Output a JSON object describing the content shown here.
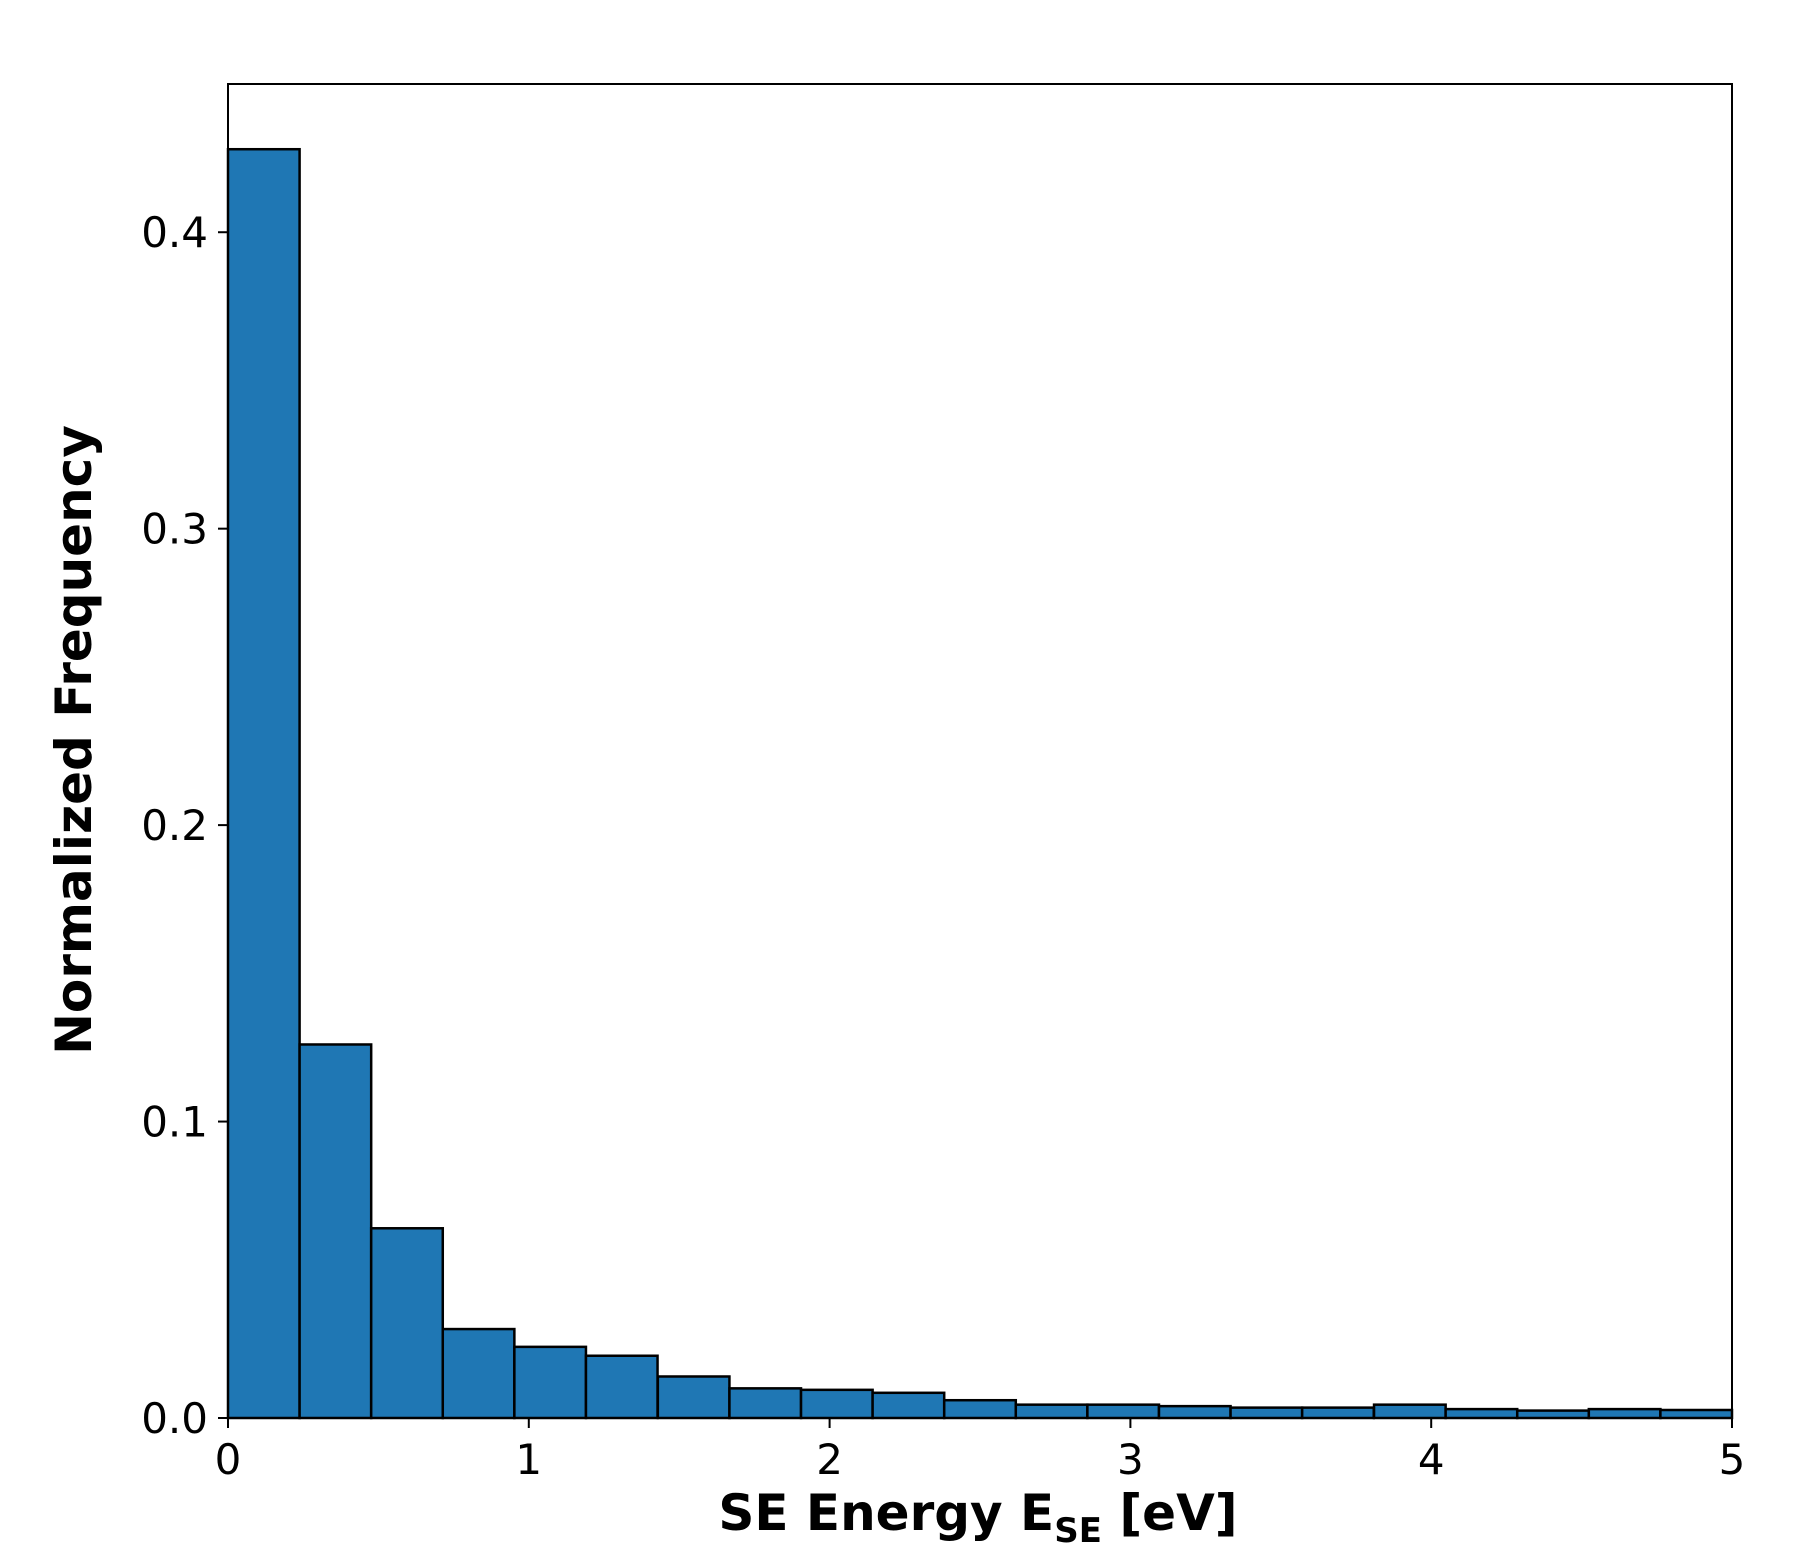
{
  "chart_data": {
    "type": "bar",
    "subtype": "histogram",
    "title": "",
    "xlabel": {
      "main": "SE Energy E",
      "subscript": "SE",
      "suffix": " [eV]"
    },
    "ylabel": "Normalized Frequency",
    "xlim": [
      0,
      5
    ],
    "ylim": [
      0,
      0.45
    ],
    "xticks": [
      "0",
      "1",
      "2",
      "3",
      "4",
      "5"
    ],
    "yticks": [
      "0.0",
      "0.1",
      "0.2",
      "0.3",
      "0.4"
    ],
    "bin_width": 0.238,
    "bins": [
      {
        "start": 0.0,
        "value": 0.428
      },
      {
        "start": 0.238,
        "value": 0.126
      },
      {
        "start": 0.476,
        "value": 0.064
      },
      {
        "start": 0.714,
        "value": 0.03
      },
      {
        "start": 0.952,
        "value": 0.024
      },
      {
        "start": 1.19,
        "value": 0.021
      },
      {
        "start": 1.429,
        "value": 0.014
      },
      {
        "start": 1.667,
        "value": 0.01
      },
      {
        "start": 1.905,
        "value": 0.0095
      },
      {
        "start": 2.143,
        "value": 0.0085
      },
      {
        "start": 2.381,
        "value": 0.006
      },
      {
        "start": 2.619,
        "value": 0.0045
      },
      {
        "start": 2.857,
        "value": 0.0045
      },
      {
        "start": 3.095,
        "value": 0.004
      },
      {
        "start": 3.333,
        "value": 0.0035
      },
      {
        "start": 3.571,
        "value": 0.0035
      },
      {
        "start": 3.81,
        "value": 0.0045
      },
      {
        "start": 4.048,
        "value": 0.003
      },
      {
        "start": 4.286,
        "value": 0.0025
      },
      {
        "start": 4.524,
        "value": 0.003
      },
      {
        "start": 4.762,
        "value": 0.0027
      }
    ],
    "bar_color": "#1f77b4",
    "edge_color": "#000000",
    "grid": false,
    "legend": "none"
  }
}
